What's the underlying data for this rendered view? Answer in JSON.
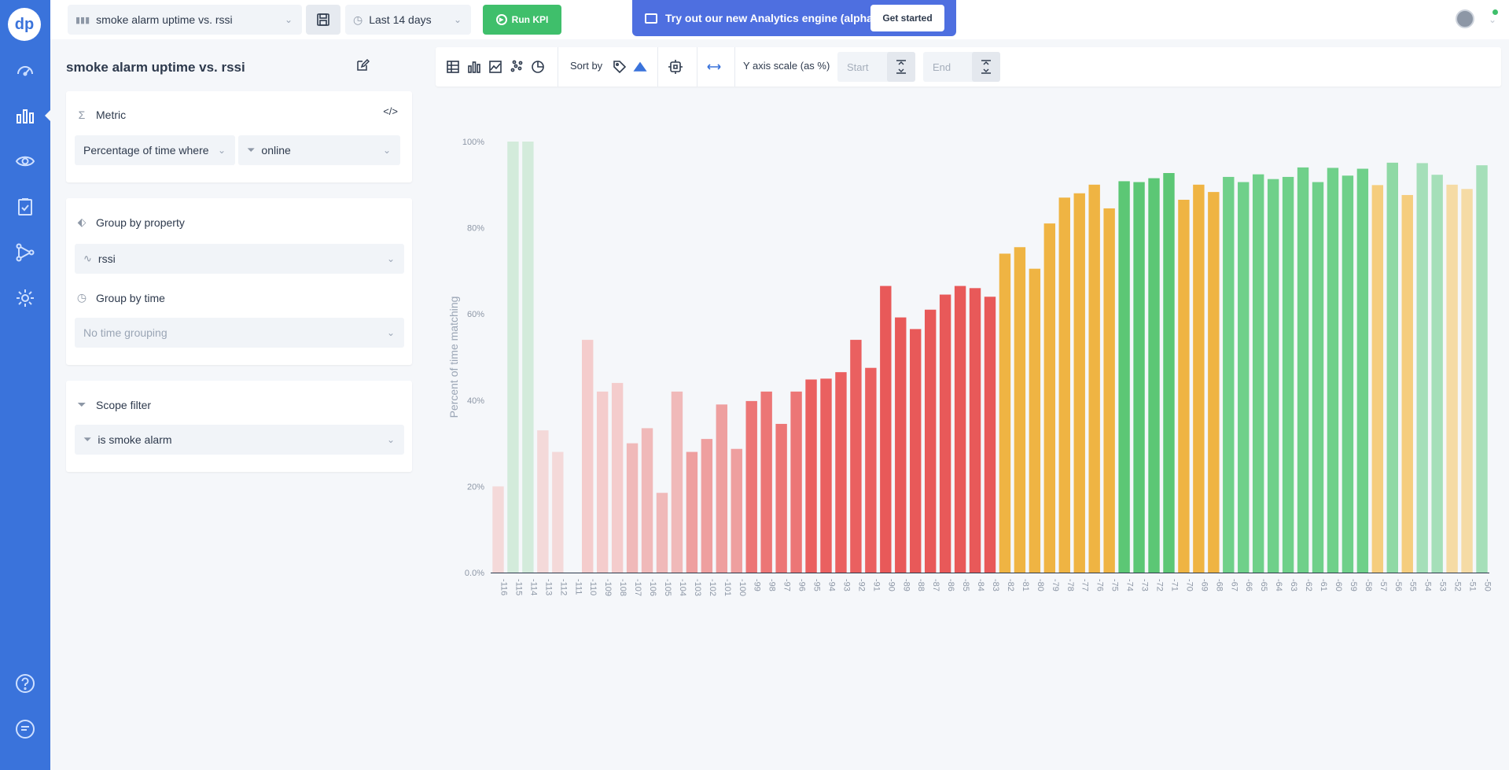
{
  "app": {
    "logo_text": "dp"
  },
  "nav": {
    "items": [
      {
        "icon": "dashboard-icon"
      },
      {
        "icon": "bar-chart-icon",
        "active": true
      },
      {
        "icon": "eye-icon"
      },
      {
        "icon": "clipboard-icon"
      },
      {
        "icon": "flow-icon"
      },
      {
        "icon": "gear-icon"
      },
      {
        "icon": "help-icon"
      },
      {
        "icon": "chat-icon"
      }
    ]
  },
  "topbar": {
    "kpi_select": "smoke alarm uptime vs. rssi",
    "time_select": "Last 14 days",
    "run_label": "Run KPI",
    "promo_text": "Try out our new Analytics engine (alpha)",
    "promo_button": "Get started"
  },
  "panel": {
    "title": "smoke alarm uptime vs. rssi",
    "metric": {
      "label": "Metric",
      "aggregation": "Percentage of time where",
      "filter": "online"
    },
    "group_by_property": {
      "label": "Group by property",
      "value": "rssi"
    },
    "group_by_time": {
      "label": "Group by time",
      "value": "No time grouping"
    },
    "scope_filter": {
      "label": "Scope filter",
      "value": "is smoke alarm"
    }
  },
  "chart_toolbar": {
    "sort_label": "Sort by",
    "yscale_label": "Y axis scale (as %)",
    "start_placeholder": "Start",
    "end_placeholder": "End"
  },
  "chart_data": {
    "type": "bar",
    "ylabel": "Percent of time matching",
    "xlabel": "",
    "ylim": [
      0,
      100
    ],
    "yticks": [
      "0.0%",
      "20%",
      "40%",
      "60%",
      "80%",
      "100%"
    ],
    "categories": [
      "-116",
      "-115",
      "-114",
      "-113",
      "-112",
      "-111",
      "-110",
      "-109",
      "-108",
      "-107",
      "-106",
      "-105",
      "-104",
      "-103",
      "-102",
      "-101",
      "-100",
      "-99",
      "-98",
      "-97",
      "-96",
      "-95",
      "-94",
      "-93",
      "-92",
      "-91",
      "-90",
      "-89",
      "-88",
      "-87",
      "-86",
      "-85",
      "-84",
      "-83",
      "-82",
      "-81",
      "-80",
      "-79",
      "-78",
      "-77",
      "-76",
      "-75",
      "-74",
      "-73",
      "-72",
      "-71",
      "-70",
      "-69",
      "-68",
      "-67",
      "-66",
      "-65",
      "-64",
      "-63",
      "-62",
      "-61",
      "-60",
      "-59",
      "-58",
      "-57",
      "-56",
      "-55",
      "-54",
      "-53",
      "-52",
      "-51",
      "-50"
    ],
    "values": [
      20,
      100,
      100,
      33,
      28,
      0,
      54,
      42,
      44,
      30,
      33.5,
      18.5,
      42,
      28,
      31,
      39,
      28.7,
      39.8,
      42,
      34.5,
      42,
      44.8,
      45,
      46.5,
      54,
      47.5,
      66.5,
      59.2,
      56.5,
      61,
      64.5,
      66.5,
      66,
      64,
      74,
      75.5,
      70.5,
      81,
      87,
      88,
      90,
      84.5,
      90.8,
      90.6,
      91.5,
      92.7,
      86.5,
      90,
      88.3,
      91.8,
      90.6,
      92.4,
      91.3,
      91.8,
      94,
      90.6,
      93.9,
      92.1,
      93.7,
      89.9,
      95.1,
      87.6,
      95,
      92.3,
      90,
      89,
      94.5
    ],
    "colors": [
      "#f4d9d9",
      "#d3ebdb",
      "#d3ebdb",
      "#f4d9d9",
      "#f4d9d9",
      "#f4d9d9",
      "#f4cccc",
      "#f4cccc",
      "#f4cccc",
      "#f0b9b9",
      "#f0b9b9",
      "#f0b9b9",
      "#f0b9b9",
      "#ee9f9f",
      "#ee9f9f",
      "#ee9f9f",
      "#ee9f9f",
      "#ec7676",
      "#ec7676",
      "#ec7676",
      "#ec7676",
      "#ea6060",
      "#ea6060",
      "#ea6060",
      "#ea6060",
      "#ea6060",
      "#e85959",
      "#e85959",
      "#e85959",
      "#e85959",
      "#e85959",
      "#e85959",
      "#e85959",
      "#e85959",
      "#efb443",
      "#efb443",
      "#efb443",
      "#efb443",
      "#efb443",
      "#efb443",
      "#efb443",
      "#efb443",
      "#5cc775",
      "#5cc775",
      "#5cc775",
      "#5cc775",
      "#efb443",
      "#efb443",
      "#efb443",
      "#6fd08a",
      "#6fd08a",
      "#6fd08a",
      "#6fd08a",
      "#6fd08a",
      "#6fd08a",
      "#6fd08a",
      "#6fd08a",
      "#6fd08a",
      "#6fd08a",
      "#f5cd7e",
      "#8fd9a5",
      "#f5cd7e",
      "#a5dfb9",
      "#a5dfb9",
      "#f5dba5",
      "#f5dba5",
      "#a5dfb9"
    ]
  }
}
